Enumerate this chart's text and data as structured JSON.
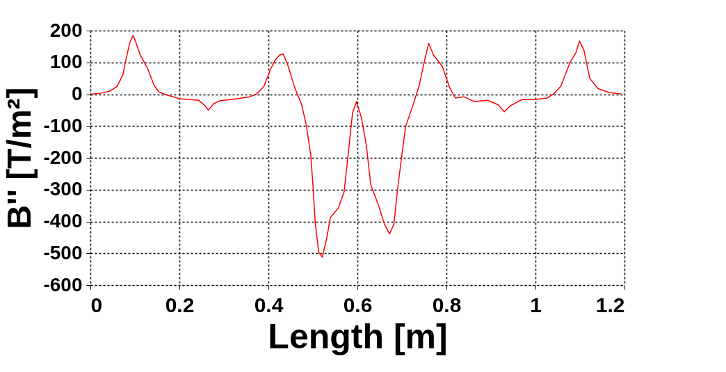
{
  "chart_data": {
    "type": "line",
    "xlabel": "Length  [m]",
    "ylabel": "B''  [T/m²]",
    "xlim": [
      0,
      1.2
    ],
    "xticks": [
      0,
      0.2,
      0.4,
      0.6,
      0.8,
      1,
      1.2
    ],
    "ylim": [
      -600,
      200
    ],
    "yticks": [
      -600,
      -500,
      -400,
      -300,
      -200,
      -100,
      0,
      100,
      200
    ],
    "grid": true,
    "line_style": "solid",
    "marker": "none",
    "series": [
      {
        "color": "#ff0000",
        "x": [
          0,
          0.023,
          0.044,
          0.06,
          0.073,
          0.08,
          0.088,
          0.096,
          0.102,
          0.112,
          0.128,
          0.143,
          0.154,
          0.175,
          0.2,
          0.243,
          0.256,
          0.265,
          0.277,
          0.29,
          0.327,
          0.358,
          0.374,
          0.39,
          0.405,
          0.416,
          0.425,
          0.433,
          0.443,
          0.459,
          0.474,
          0.485,
          0.495,
          0.5,
          0.505,
          0.513,
          0.521,
          0.531,
          0.539,
          0.557,
          0.57,
          0.578,
          0.589,
          0.598,
          0.609,
          0.62,
          0.63,
          0.646,
          0.661,
          0.672,
          0.682,
          0.69,
          0.698,
          0.708,
          0.724,
          0.739,
          0.75,
          0.76,
          0.771,
          0.791,
          0.807,
          0.82,
          0.839,
          0.862,
          0.893,
          0.917,
          0.93,
          0.943,
          0.969,
          0.996,
          1.026,
          1.041,
          1.057,
          1.078,
          1.091,
          1.099,
          1.109,
          1.122,
          1.14,
          1.166,
          1.192
        ],
        "values": [
          0,
          3,
          10,
          25,
          61,
          109,
          160,
          185,
          164,
          123,
          83,
          28,
          7,
          -4,
          -14,
          -19,
          -34,
          -50,
          -30,
          -21,
          -15,
          -8,
          1,
          25,
          80,
          109,
          123,
          127,
          94,
          21,
          -30,
          -96,
          -191,
          -285,
          -402,
          -497,
          -512,
          -453,
          -388,
          -358,
          -307,
          -205,
          -59,
          -23,
          -74,
          -161,
          -285,
          -344,
          -409,
          -439,
          -409,
          -300,
          -212,
          -103,
          -37,
          28,
          101,
          160,
          123,
          87,
          21,
          -12,
          -8,
          -23,
          -19,
          -34,
          -55,
          -37,
          -17,
          -17,
          -12,
          1,
          25,
          101,
          131,
          167,
          138,
          50,
          18,
          5,
          1
        ]
      }
    ]
  }
}
